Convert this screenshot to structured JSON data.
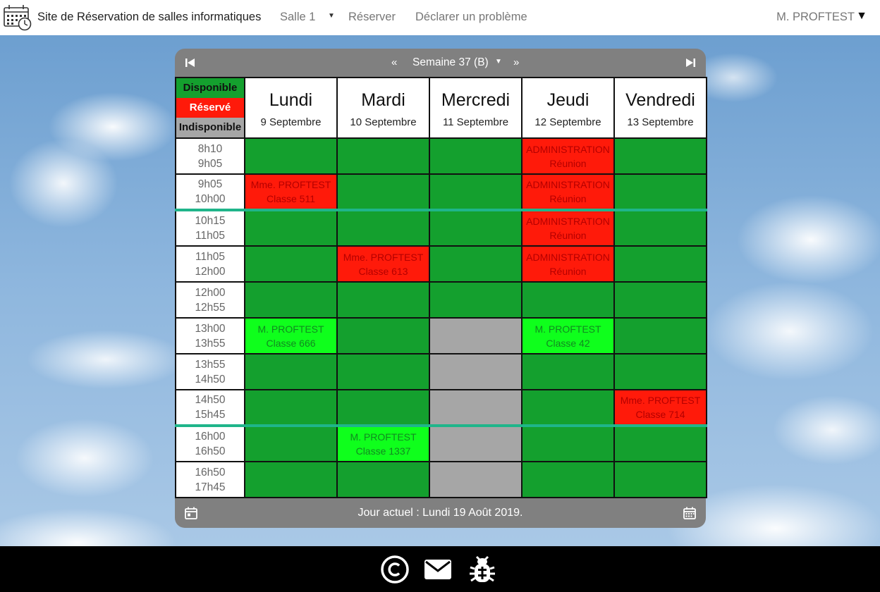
{
  "header": {
    "site_title": "Site de Réservation de salles informatiques",
    "nav": {
      "room_select": "Salle 1",
      "reserve": "Réserver",
      "report_problem": "Déclarer un problème"
    },
    "user": "M. PROFTEST"
  },
  "week_nav": {
    "prev": "«",
    "label": "Semaine 37 (B)",
    "next": "»"
  },
  "legend": {
    "available": "Disponible",
    "reserved": "Réservé",
    "unavailable": "Indisponible"
  },
  "days": [
    {
      "name": "Lundi",
      "date": "9 Septembre"
    },
    {
      "name": "Mardi",
      "date": "10 Septembre"
    },
    {
      "name": "Mercredi",
      "date": "11 Septembre"
    },
    {
      "name": "Jeudi",
      "date": "12 Septembre"
    },
    {
      "name": "Vendredi",
      "date": "13 Septembre"
    }
  ],
  "slots": [
    {
      "start": "8h10",
      "end": "9h05"
    },
    {
      "start": "9h05",
      "end": "10h00"
    },
    {
      "start": "10h15",
      "end": "11h05"
    },
    {
      "start": "11h05",
      "end": "12h00"
    },
    {
      "start": "12h00",
      "end": "12h55"
    },
    {
      "start": "13h00",
      "end": "13h55"
    },
    {
      "start": "13h55",
      "end": "14h50"
    },
    {
      "start": "14h50",
      "end": "15h45"
    },
    {
      "start": "16h00",
      "end": "16h50"
    },
    {
      "start": "16h50",
      "end": "17h45"
    }
  ],
  "bookings": {
    "r0_thu": {
      "who": "ADMINISTRATION",
      "what": "Réunion"
    },
    "r1_mon": {
      "who": "Mme. PROFTEST",
      "what": "Classe 511"
    },
    "r1_thu": {
      "who": "ADMINISTRATION",
      "what": "Réunion"
    },
    "r2_thu": {
      "who": "ADMINISTRATION",
      "what": "Réunion"
    },
    "r3_tue": {
      "who": "Mme. PROFTEST",
      "what": "Classe 613"
    },
    "r3_thu": {
      "who": "ADMINISTRATION",
      "what": "Réunion"
    },
    "r5_mon": {
      "who": "M. PROFTEST",
      "what": "Classe 666"
    },
    "r5_thu": {
      "who": "M. PROFTEST",
      "what": "Classe 42"
    },
    "r7_fri": {
      "who": "Mme. PROFTEST",
      "what": "Classe 714"
    },
    "r8_tue": {
      "who": "M. PROFTEST",
      "what": "Classe 1337"
    }
  },
  "footer_bar": {
    "current_day": "Jour actuel : Lundi 19 Août 2019."
  },
  "colors": {
    "available": "#14a02e",
    "reserved": "#ff1a0a",
    "own_reservation": "#0fff1c",
    "unavailable": "#a6a6a6",
    "break_line": "#1fb58a"
  },
  "icons": {
    "logo": "calendar-clock-icon",
    "footer": [
      "copyright-icon",
      "mail-icon",
      "bug-icon"
    ]
  }
}
